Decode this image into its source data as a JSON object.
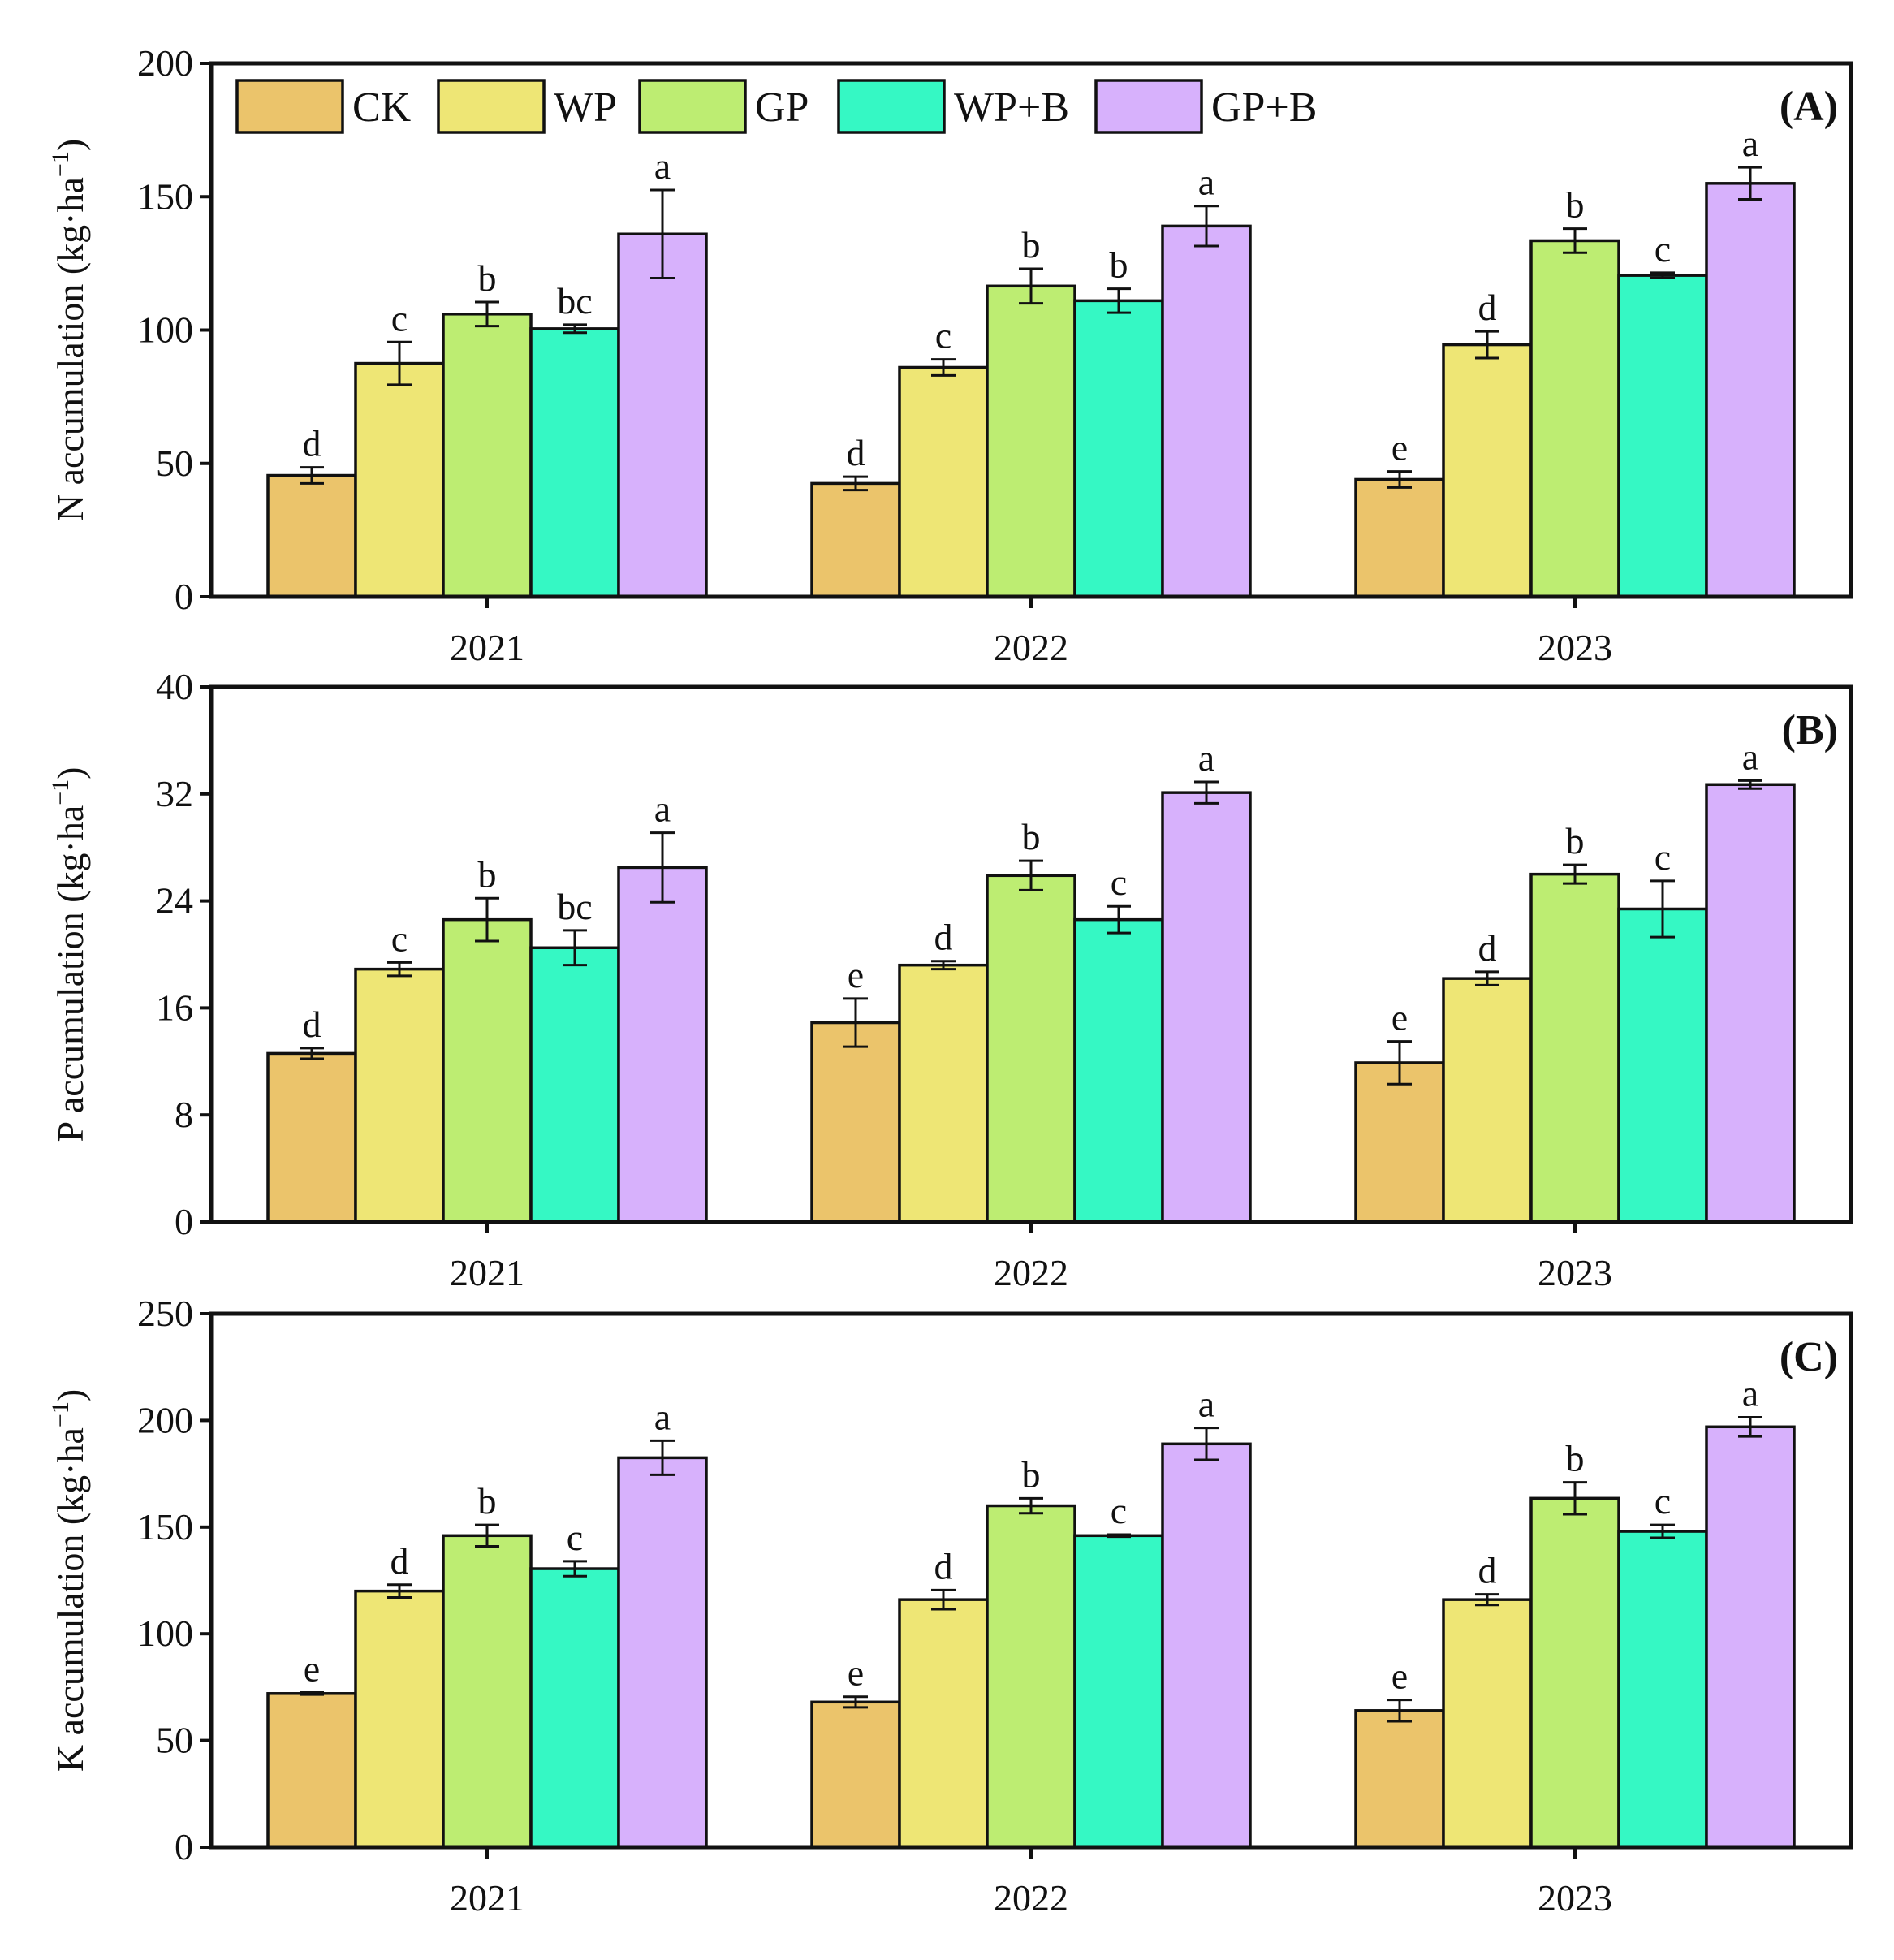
{
  "legend": [
    {
      "name": "CK",
      "color": "#EBC46B"
    },
    {
      "name": "WP",
      "color": "#EEE675"
    },
    {
      "name": "GP",
      "color": "#BDED72"
    },
    {
      "name": "WP+B",
      "color": "#35F8C4"
    },
    {
      "name": "GP+B",
      "color": "#D7B1FC"
    }
  ],
  "chart_data": [
    {
      "type": "bar",
      "panel_label": "(A)",
      "categories": [
        "2021",
        "2022",
        "2023"
      ],
      "ylabel_prefix": "N accumulation (kg·ha",
      "ylabel_sup": "−1",
      "ylabel_suffix": ")",
      "ylim": [
        0,
        200
      ],
      "yticks": [
        0,
        50,
        100,
        150,
        200
      ],
      "ytick_labels": [
        "0",
        "50",
        "100",
        "150",
        "200"
      ],
      "series": [
        {
          "name": "CK",
          "values": [
            45.5,
            42.5,
            44
          ],
          "errors": [
            3,
            2.5,
            3
          ],
          "letters": [
            "d",
            "d",
            "e"
          ]
        },
        {
          "name": "WP",
          "values": [
            87.5,
            86,
            94.5
          ],
          "errors": [
            8,
            3,
            5
          ],
          "letters": [
            "c",
            "c",
            "d"
          ]
        },
        {
          "name": "GP",
          "values": [
            106,
            116.5,
            133.5
          ],
          "errors": [
            4.5,
            6.5,
            4.5
          ],
          "letters": [
            "b",
            "b",
            "b"
          ]
        },
        {
          "name": "WP+B",
          "values": [
            100.5,
            111,
            120.5
          ],
          "errors": [
            1.5,
            4.5,
            1
          ],
          "letters": [
            "bc",
            "b",
            "c"
          ]
        },
        {
          "name": "GP+B",
          "values": [
            136,
            139,
            155
          ],
          "errors": [
            16.5,
            7.5,
            6
          ],
          "letters": [
            "a",
            "a",
            "a"
          ]
        }
      ]
    },
    {
      "type": "bar",
      "panel_label": "(B)",
      "categories": [
        "2021",
        "2022",
        "2023"
      ],
      "ylabel_prefix": "P accumulation (kg·ha",
      "ylabel_sup": "−1",
      "ylabel_suffix": ")",
      "ylim": [
        0,
        40
      ],
      "yticks": [
        0,
        8,
        16,
        24,
        32,
        40
      ],
      "ytick_labels": [
        "0",
        "8",
        "16",
        "24",
        "32",
        "40"
      ],
      "series": [
        {
          "name": "CK",
          "values": [
            12.6,
            14.9,
            11.9
          ],
          "errors": [
            0.4,
            1.8,
            1.6
          ],
          "letters": [
            "d",
            "e",
            "e"
          ]
        },
        {
          "name": "WP",
          "values": [
            18.9,
            19.2,
            18.2
          ],
          "errors": [
            0.5,
            0.3,
            0.5
          ],
          "letters": [
            "c",
            "d",
            "d"
          ]
        },
        {
          "name": "GP",
          "values": [
            22.6,
            25.9,
            26.0
          ],
          "errors": [
            1.6,
            1.1,
            0.7
          ],
          "letters": [
            "b",
            "b",
            "b"
          ]
        },
        {
          "name": "WP+B",
          "values": [
            20.5,
            22.6,
            23.4
          ],
          "errors": [
            1.3,
            1.0,
            2.1
          ],
          "letters": [
            "bc",
            "c",
            "c"
          ]
        },
        {
          "name": "GP+B",
          "values": [
            26.5,
            32.1,
            32.7
          ],
          "errors": [
            2.6,
            0.8,
            0.3
          ],
          "letters": [
            "a",
            "a",
            "a"
          ]
        }
      ]
    },
    {
      "type": "bar",
      "panel_label": "(C)",
      "categories": [
        "2021",
        "2022",
        "2023"
      ],
      "ylabel_prefix": "K accumulation (kg·ha",
      "ylabel_sup": "−1",
      "ylabel_suffix": ")",
      "ylim": [
        0,
        250
      ],
      "yticks": [
        0,
        50,
        100,
        150,
        200,
        250
      ],
      "ytick_labels": [
        "0",
        "50",
        "100",
        "150",
        "200",
        "250"
      ],
      "series": [
        {
          "name": "CK",
          "values": [
            72,
            68,
            64
          ],
          "errors": [
            0.5,
            2.5,
            5
          ],
          "letters": [
            "e",
            "e",
            "e"
          ]
        },
        {
          "name": "WP",
          "values": [
            120,
            116,
            116
          ],
          "errors": [
            3,
            4.5,
            2.5
          ],
          "letters": [
            "d",
            "d",
            "d"
          ]
        },
        {
          "name": "GP",
          "values": [
            146,
            160,
            163.5
          ],
          "errors": [
            5,
            3.5,
            7.5
          ],
          "letters": [
            "b",
            "b",
            "b"
          ]
        },
        {
          "name": "WP+B",
          "values": [
            130.5,
            146,
            148
          ],
          "errors": [
            3.5,
            0.5,
            3
          ],
          "letters": [
            "c",
            "c",
            "c"
          ]
        },
        {
          "name": "GP+B",
          "values": [
            182.5,
            189,
            197
          ],
          "errors": [
            8,
            7.5,
            4.5
          ],
          "letters": [
            "a",
            "a",
            "a"
          ]
        }
      ]
    }
  ]
}
